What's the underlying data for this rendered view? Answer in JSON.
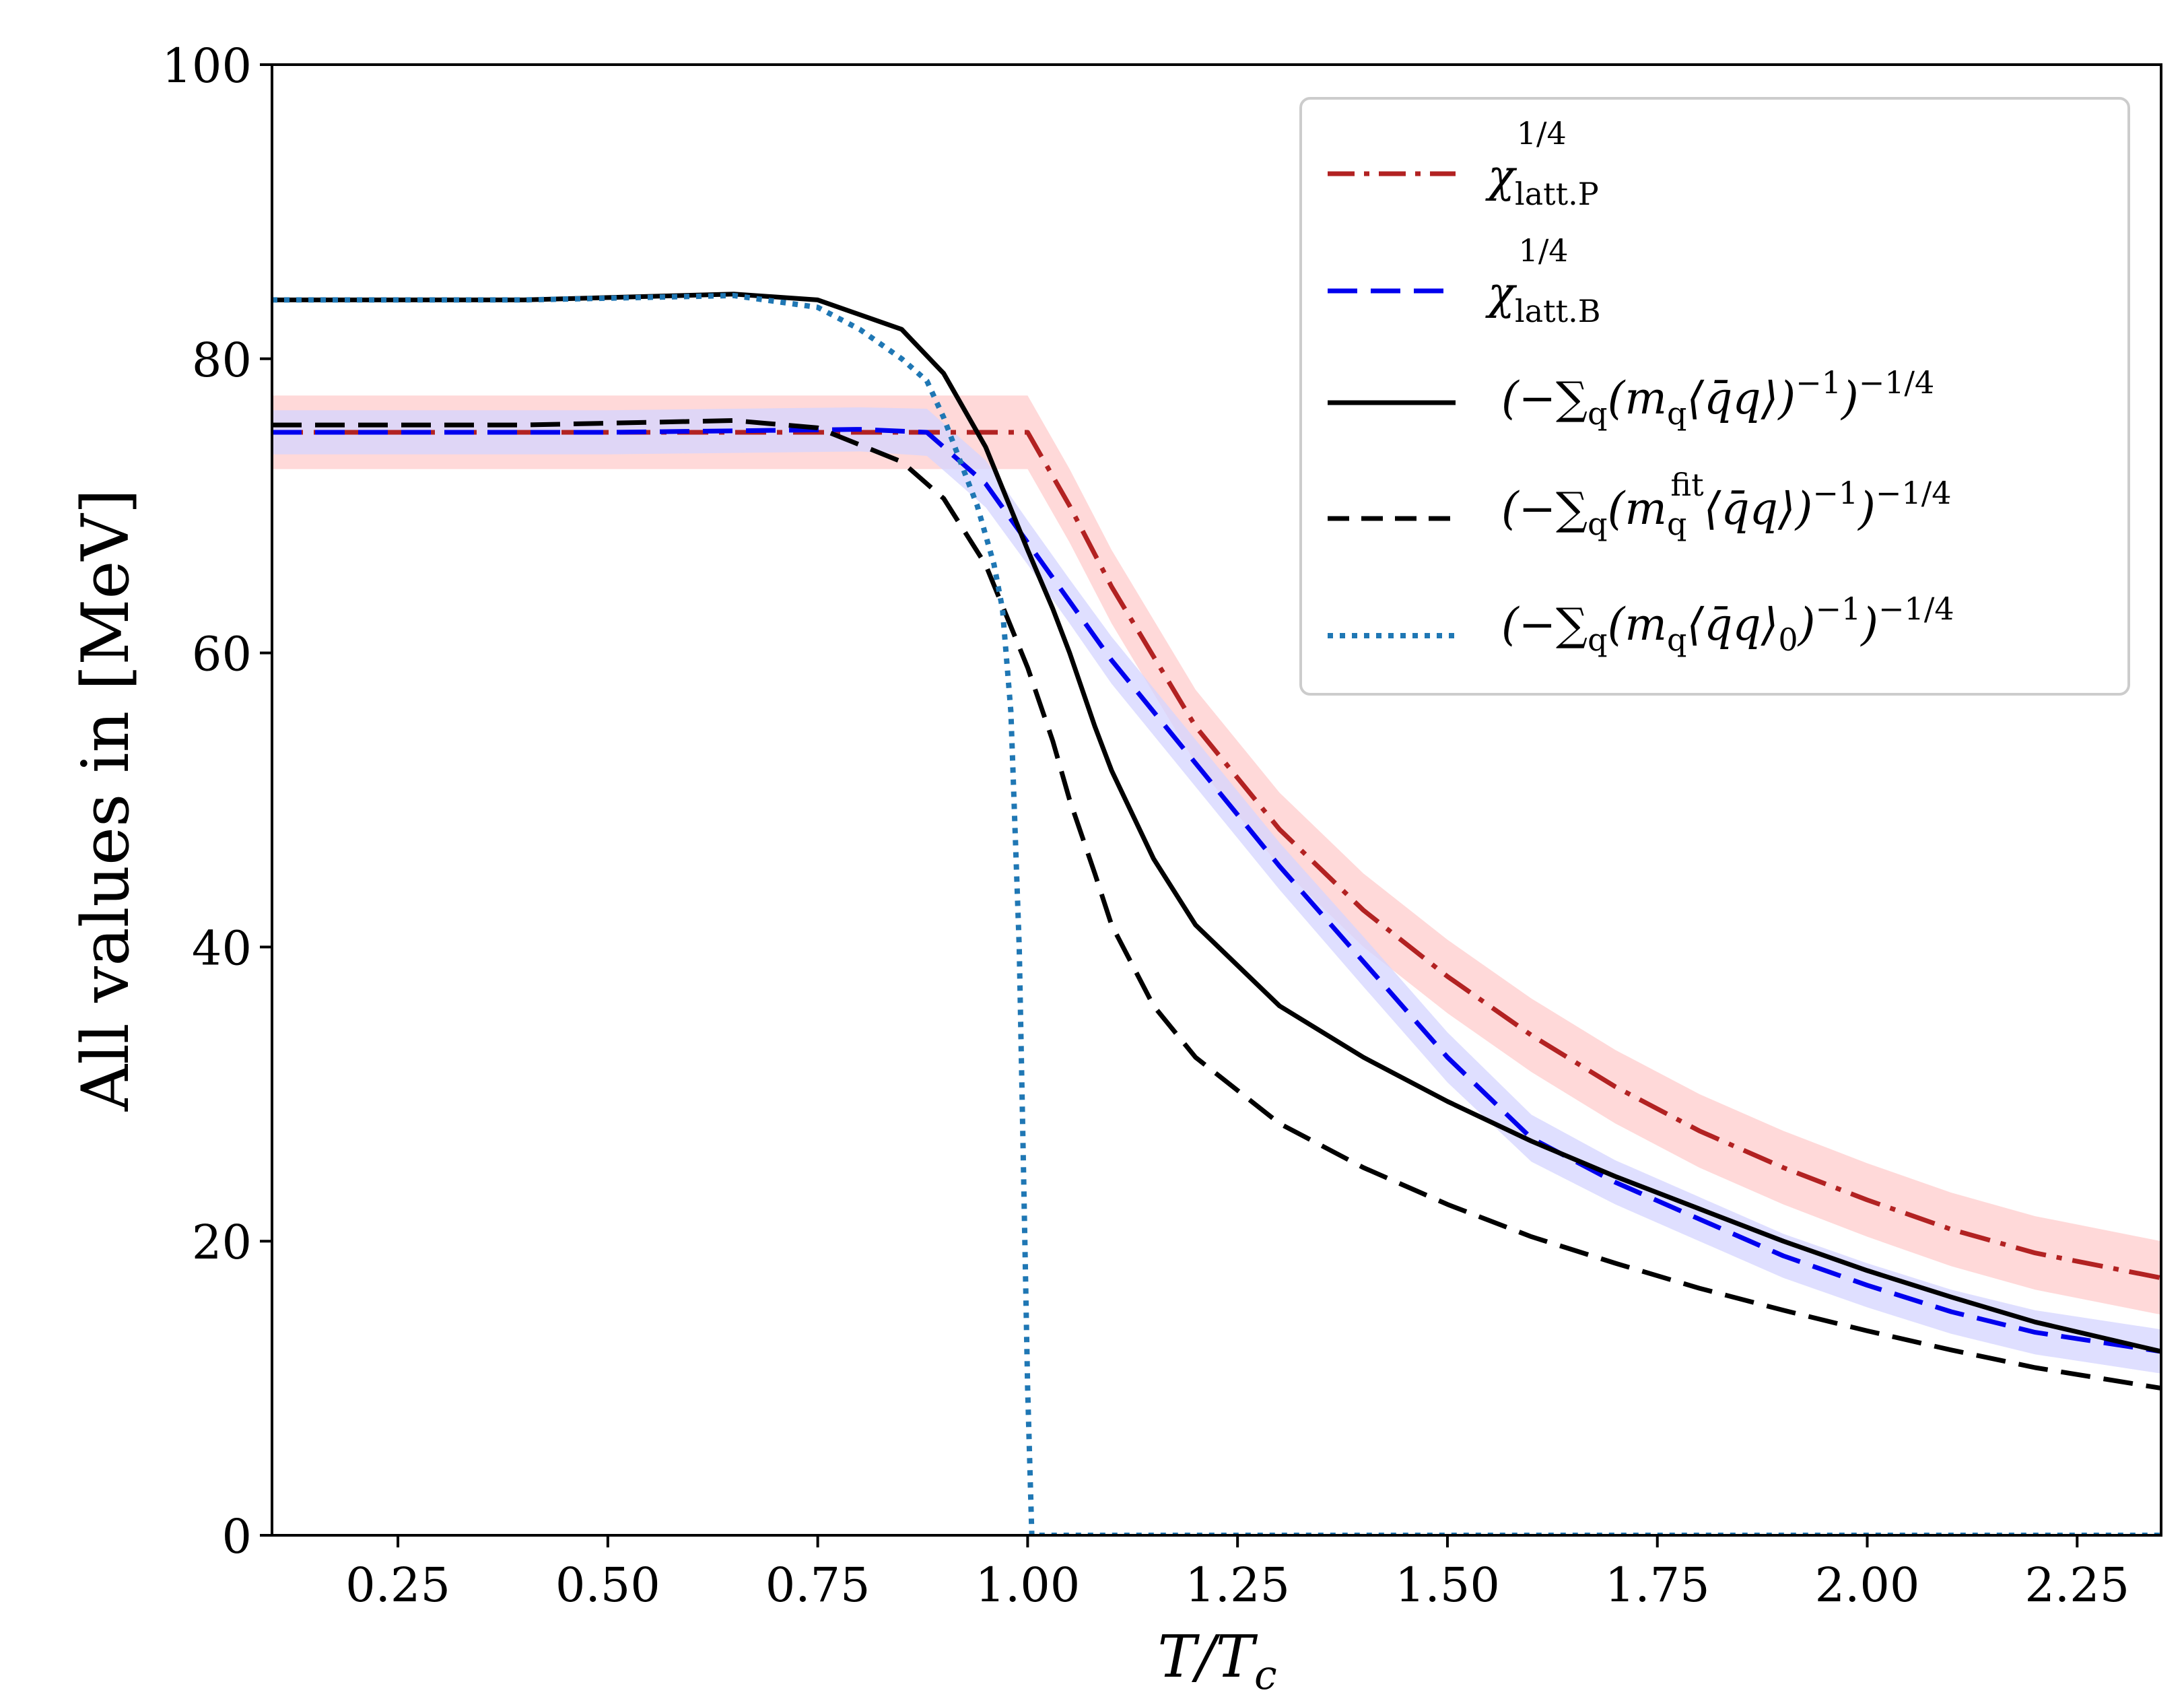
{
  "chart_data": {
    "type": "line",
    "title": "",
    "xlabel": "T/T_c",
    "ylabel": "All values in [MeV]",
    "xlim": [
      0.1,
      2.35
    ],
    "ylim": [
      0,
      100
    ],
    "xticks": [
      "0.25",
      "0.50",
      "0.75",
      "1.00",
      "1.25",
      "1.50",
      "1.75",
      "2.00",
      "2.25"
    ],
    "yticks": [
      "0",
      "20",
      "40",
      "60",
      "80",
      "100"
    ],
    "legend_position": "top-right",
    "series": [
      {
        "name": "chi_latt.P^(1/4)",
        "legend_label": "χ latt.P ^1/4",
        "color": "#b22222",
        "dash": "dashdot",
        "band_color": "#ffcccc",
        "x": [
          0.1,
          0.5,
          0.8,
          0.95,
          1.0,
          1.05,
          1.1,
          1.2,
          1.3,
          1.4,
          1.5,
          1.6,
          1.7,
          1.8,
          1.9,
          2.0,
          2.1,
          2.2,
          2.35
        ],
        "y": [
          75.0,
          75.0,
          75.0,
          75.0,
          75.0,
          70.0,
          64.5,
          55.0,
          48.0,
          42.5,
          38.0,
          34.0,
          30.5,
          27.5,
          25.0,
          22.8,
          20.8,
          19.2,
          17.5
        ],
        "band_halfwidth": [
          2.5,
          2.5,
          2.5,
          2.5,
          2.5,
          2.5,
          2.5,
          2.5,
          2.5,
          2.5,
          2.5,
          2.5,
          2.5,
          2.5,
          2.5,
          2.5,
          2.5,
          2.5,
          2.5
        ]
      },
      {
        "name": "chi_latt.B^(1/4)",
        "legend_label": "χ latt.B ^1/4",
        "color": "#0000ee",
        "dash": "dashed",
        "band_color": "#d4d4ff",
        "x": [
          0.1,
          0.5,
          0.8,
          0.88,
          0.95,
          1.0,
          1.05,
          1.1,
          1.2,
          1.3,
          1.4,
          1.5,
          1.6,
          1.7,
          1.8,
          1.9,
          2.0,
          2.1,
          2.2,
          2.35
        ],
        "y": [
          75.0,
          75.0,
          75.2,
          75.0,
          71.5,
          67.5,
          63.5,
          59.5,
          52.5,
          45.5,
          39.0,
          32.5,
          27.0,
          24.0,
          21.5,
          19.0,
          17.0,
          15.2,
          13.8,
          12.5
        ],
        "band_halfwidth": [
          1.5,
          1.5,
          1.5,
          1.6,
          1.6,
          1.5,
          1.5,
          1.6,
          1.6,
          1.6,
          1.7,
          1.7,
          1.6,
          1.5,
          1.5,
          1.5,
          1.5,
          1.5,
          1.5,
          1.5
        ]
      },
      {
        "name": "(-sum_q (m_q <qbar q>)^-1)^-1/4",
        "legend_label": "(−∑q(mq⟨q̄q⟩)^−1)^−1/4",
        "color": "#000000",
        "dash": "solid",
        "x": [
          0.1,
          0.4,
          0.65,
          0.75,
          0.85,
          0.9,
          0.95,
          1.0,
          1.03,
          1.05,
          1.08,
          1.1,
          1.15,
          1.2,
          1.3,
          1.4,
          1.5,
          1.6,
          1.7,
          1.8,
          1.9,
          2.0,
          2.1,
          2.2,
          2.35
        ],
        "y": [
          84.0,
          84.0,
          84.4,
          84.0,
          82.0,
          79.0,
          74.0,
          67.0,
          63.0,
          60.0,
          55.0,
          52.0,
          46.0,
          41.5,
          36.0,
          32.5,
          29.5,
          26.8,
          24.4,
          22.2,
          20.0,
          18.0,
          16.2,
          14.5,
          12.5
        ]
      },
      {
        "name": "(-sum_q (m_q^fit <qbar q>)^-1)^-1/4",
        "legend_label": "(−∑q(mq^fit⟨q̄q⟩)^−1)^−1/4",
        "color": "#000000",
        "dash": "dashed",
        "x": [
          0.1,
          0.4,
          0.65,
          0.75,
          0.85,
          0.9,
          0.95,
          1.0,
          1.03,
          1.05,
          1.08,
          1.1,
          1.15,
          1.2,
          1.3,
          1.4,
          1.5,
          1.6,
          1.7,
          1.8,
          1.9,
          2.0,
          2.1,
          2.2,
          2.35
        ],
        "y": [
          75.5,
          75.5,
          75.8,
          75.3,
          73.0,
          70.5,
          66.0,
          59.0,
          54.0,
          50.0,
          45.0,
          41.5,
          36.0,
          32.5,
          28.0,
          25.0,
          22.5,
          20.3,
          18.5,
          16.8,
          15.3,
          13.9,
          12.6,
          11.4,
          10.0
        ]
      },
      {
        "name": "(-sum_q (m_q <qbar q>_0)^-1)^-1/4",
        "legend_label": "(−∑q(mq⟨q̄q⟩0)^−1)^−1/4",
        "color": "#1f77b4",
        "dash": "dotted",
        "x": [
          0.1,
          0.4,
          0.65,
          0.75,
          0.8,
          0.85,
          0.88,
          0.9,
          0.92,
          0.94,
          0.96,
          0.97,
          0.98,
          0.99,
          0.995,
          1.0,
          1.005,
          2.35
        ],
        "y": [
          84.0,
          84.0,
          84.3,
          83.5,
          82.0,
          80.0,
          78.5,
          76.0,
          73.0,
          70.0,
          66.0,
          63.0,
          56.0,
          40.0,
          25.0,
          10.0,
          0.0,
          0.0
        ]
      }
    ]
  }
}
